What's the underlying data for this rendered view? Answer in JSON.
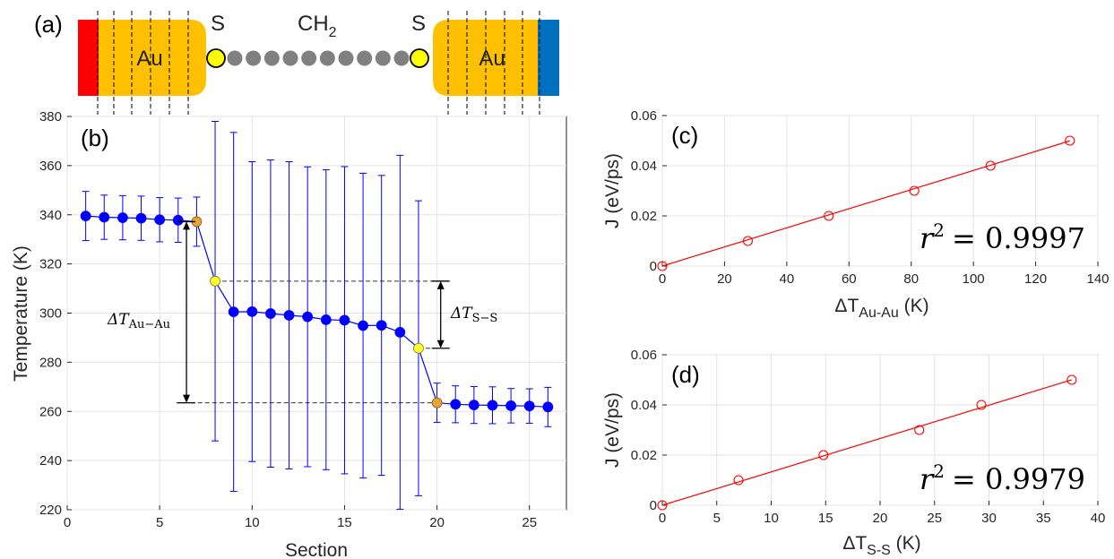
{
  "schematic": {
    "panel_label": "(a)",
    "left_metal": "Au",
    "right_metal": "Au",
    "left_anchor": "S",
    "right_anchor": "S",
    "chain_label": "CH",
    "chain_subscript": "2",
    "chain_beads": 10,
    "colors": {
      "gold": "#FFC000",
      "hot": "#FF0000",
      "cold": "#0070C0",
      "sulfur": "#FFFF00",
      "carbon": "#808080"
    }
  },
  "chart_data": [
    {
      "id": "b",
      "type": "line",
      "panel_label": "(b)",
      "xlabel": "Section",
      "ylabel": "Temperature (K)",
      "xlim": [
        0,
        27
      ],
      "ylim": [
        220,
        380
      ],
      "xticks": [
        0,
        5,
        10,
        15,
        20,
        25
      ],
      "yticks": [
        220,
        240,
        260,
        280,
        300,
        320,
        340,
        360,
        380
      ],
      "grid": true,
      "colors": {
        "line": "#0000FF",
        "au_edge": "#E8A33A",
        "s_site": "#FFFF33"
      },
      "series": [
        {
          "x": [
            1,
            2,
            3,
            4,
            5,
            6,
            7,
            8,
            9,
            10,
            11,
            12,
            13,
            14,
            15,
            16,
            17,
            18,
            19,
            20,
            21,
            22,
            23,
            24,
            25,
            26
          ],
          "y": [
            339.5,
            339.0,
            338.8,
            338.6,
            338.0,
            337.8,
            337.2,
            313.0,
            300.5,
            300.6,
            299.8,
            299.1,
            298.5,
            297.3,
            297.1,
            294.9,
            295.0,
            292.2,
            285.7,
            263.5,
            262.9,
            262.6,
            262.5,
            262.3,
            262.2,
            261.8
          ],
          "yerr": [
            10,
            9,
            9,
            9,
            9,
            9,
            10,
            65,
            73,
            61,
            62.5,
            62.5,
            61,
            61,
            62.5,
            62,
            61,
            72,
            60,
            8,
            7.5,
            7.5,
            7.5,
            7,
            7,
            8
          ],
          "marker_kind": [
            "au",
            "au",
            "au",
            "au",
            "au",
            "au",
            "au_edge",
            "s",
            "c",
            "c",
            "c",
            "c",
            "c",
            "c",
            "c",
            "c",
            "c",
            "c",
            "s",
            "au_edge",
            "au",
            "au",
            "au",
            "au",
            "au",
            "au"
          ]
        }
      ],
      "annotations": [
        {
          "label": "ΔT",
          "subscript": "Au−Au",
          "from": 337.2,
          "to": 263.5
        },
        {
          "label": "ΔT",
          "subscript": "S−S",
          "from": 313.0,
          "to": 285.7
        }
      ]
    },
    {
      "id": "c",
      "type": "scatter",
      "panel_label": "(c)",
      "xlabel": "ΔT",
      "xlabel_sub": "Au-Au",
      "xlabel_unit": " (K)",
      "ylabel": "J (eV/ps)",
      "xlim": [
        0,
        140
      ],
      "ylim": [
        0,
        0.06
      ],
      "xticks": [
        0,
        20,
        40,
        60,
        80,
        100,
        120,
        140
      ],
      "yticks": [
        0,
        0.02,
        0.04,
        0.06
      ],
      "ytick_labels": [
        "0",
        "0.02",
        "0.04",
        "0.06"
      ],
      "grid": true,
      "color": "#FF0000",
      "x": [
        0,
        27.5,
        53.5,
        81,
        105.5,
        131
      ],
      "y": [
        0,
        0.01,
        0.02,
        0.03,
        0.04,
        0.05
      ],
      "fit": {
        "slope": 0.000381,
        "intercept": 0
      },
      "r2_text": "r",
      "r2_value": "= 0.9997"
    },
    {
      "id": "d",
      "type": "scatter",
      "panel_label": "(d)",
      "xlabel": "ΔT",
      "xlabel_sub": "S-S",
      "xlabel_unit": " (K)",
      "ylabel": "J (eV/ps)",
      "xlim": [
        0,
        40
      ],
      "ylim": [
        0,
        0.06
      ],
      "xticks": [
        0,
        5,
        10,
        15,
        20,
        25,
        30,
        35,
        40
      ],
      "yticks": [
        0,
        0.02,
        0.04,
        0.06
      ],
      "ytick_labels": [
        "0",
        "0.02",
        "0.04",
        "0.06"
      ],
      "grid": true,
      "color": "#FF0000",
      "x": [
        0,
        7,
        14.8,
        23.6,
        29.3,
        37.6
      ],
      "y": [
        0,
        0.01,
        0.02,
        0.03,
        0.04,
        0.05
      ],
      "fit": {
        "slope": 0.00133,
        "intercept": 0
      },
      "r2_text": "r",
      "r2_value": "= 0.9979"
    }
  ]
}
